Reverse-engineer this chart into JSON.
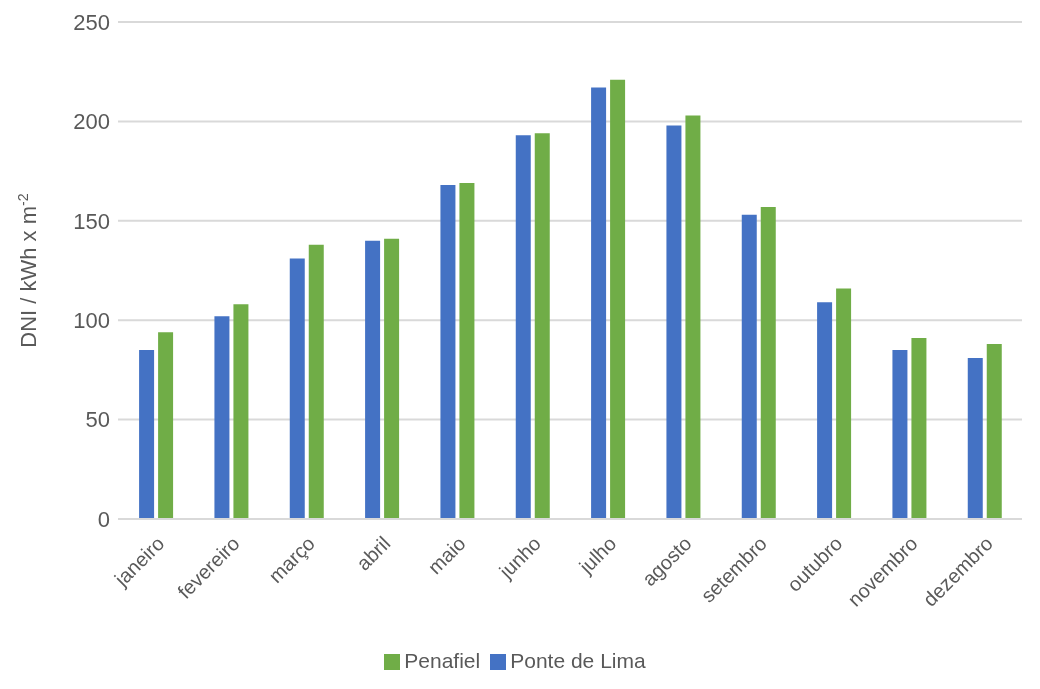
{
  "chart_data": {
    "type": "bar",
    "ylabel": "DNI / kWh x m$^{-2}$",
    "categories": [
      "janeiro",
      "fevereiro",
      "março",
      "abril",
      "maio",
      "junho",
      "julho",
      "agosto",
      "setembro",
      "outubro",
      "novembro",
      "dezembro"
    ],
    "series": [
      {
        "name": "Ponte de Lima",
        "color": "#4472c4",
        "values": [
          85,
          102,
          131,
          140,
          168,
          193,
          217,
          198,
          153,
          109,
          85,
          81
        ]
      },
      {
        "name": "Penafiel",
        "color": "#70ad47",
        "values": [
          94,
          108,
          138,
          141,
          169,
          194,
          221,
          203,
          157,
          116,
          91,
          88
        ]
      }
    ],
    "ylim": [
      0,
      250
    ],
    "yticks": [
      0,
      50,
      100,
      150,
      200,
      250
    ],
    "grid": "y",
    "legend": "bottom"
  }
}
